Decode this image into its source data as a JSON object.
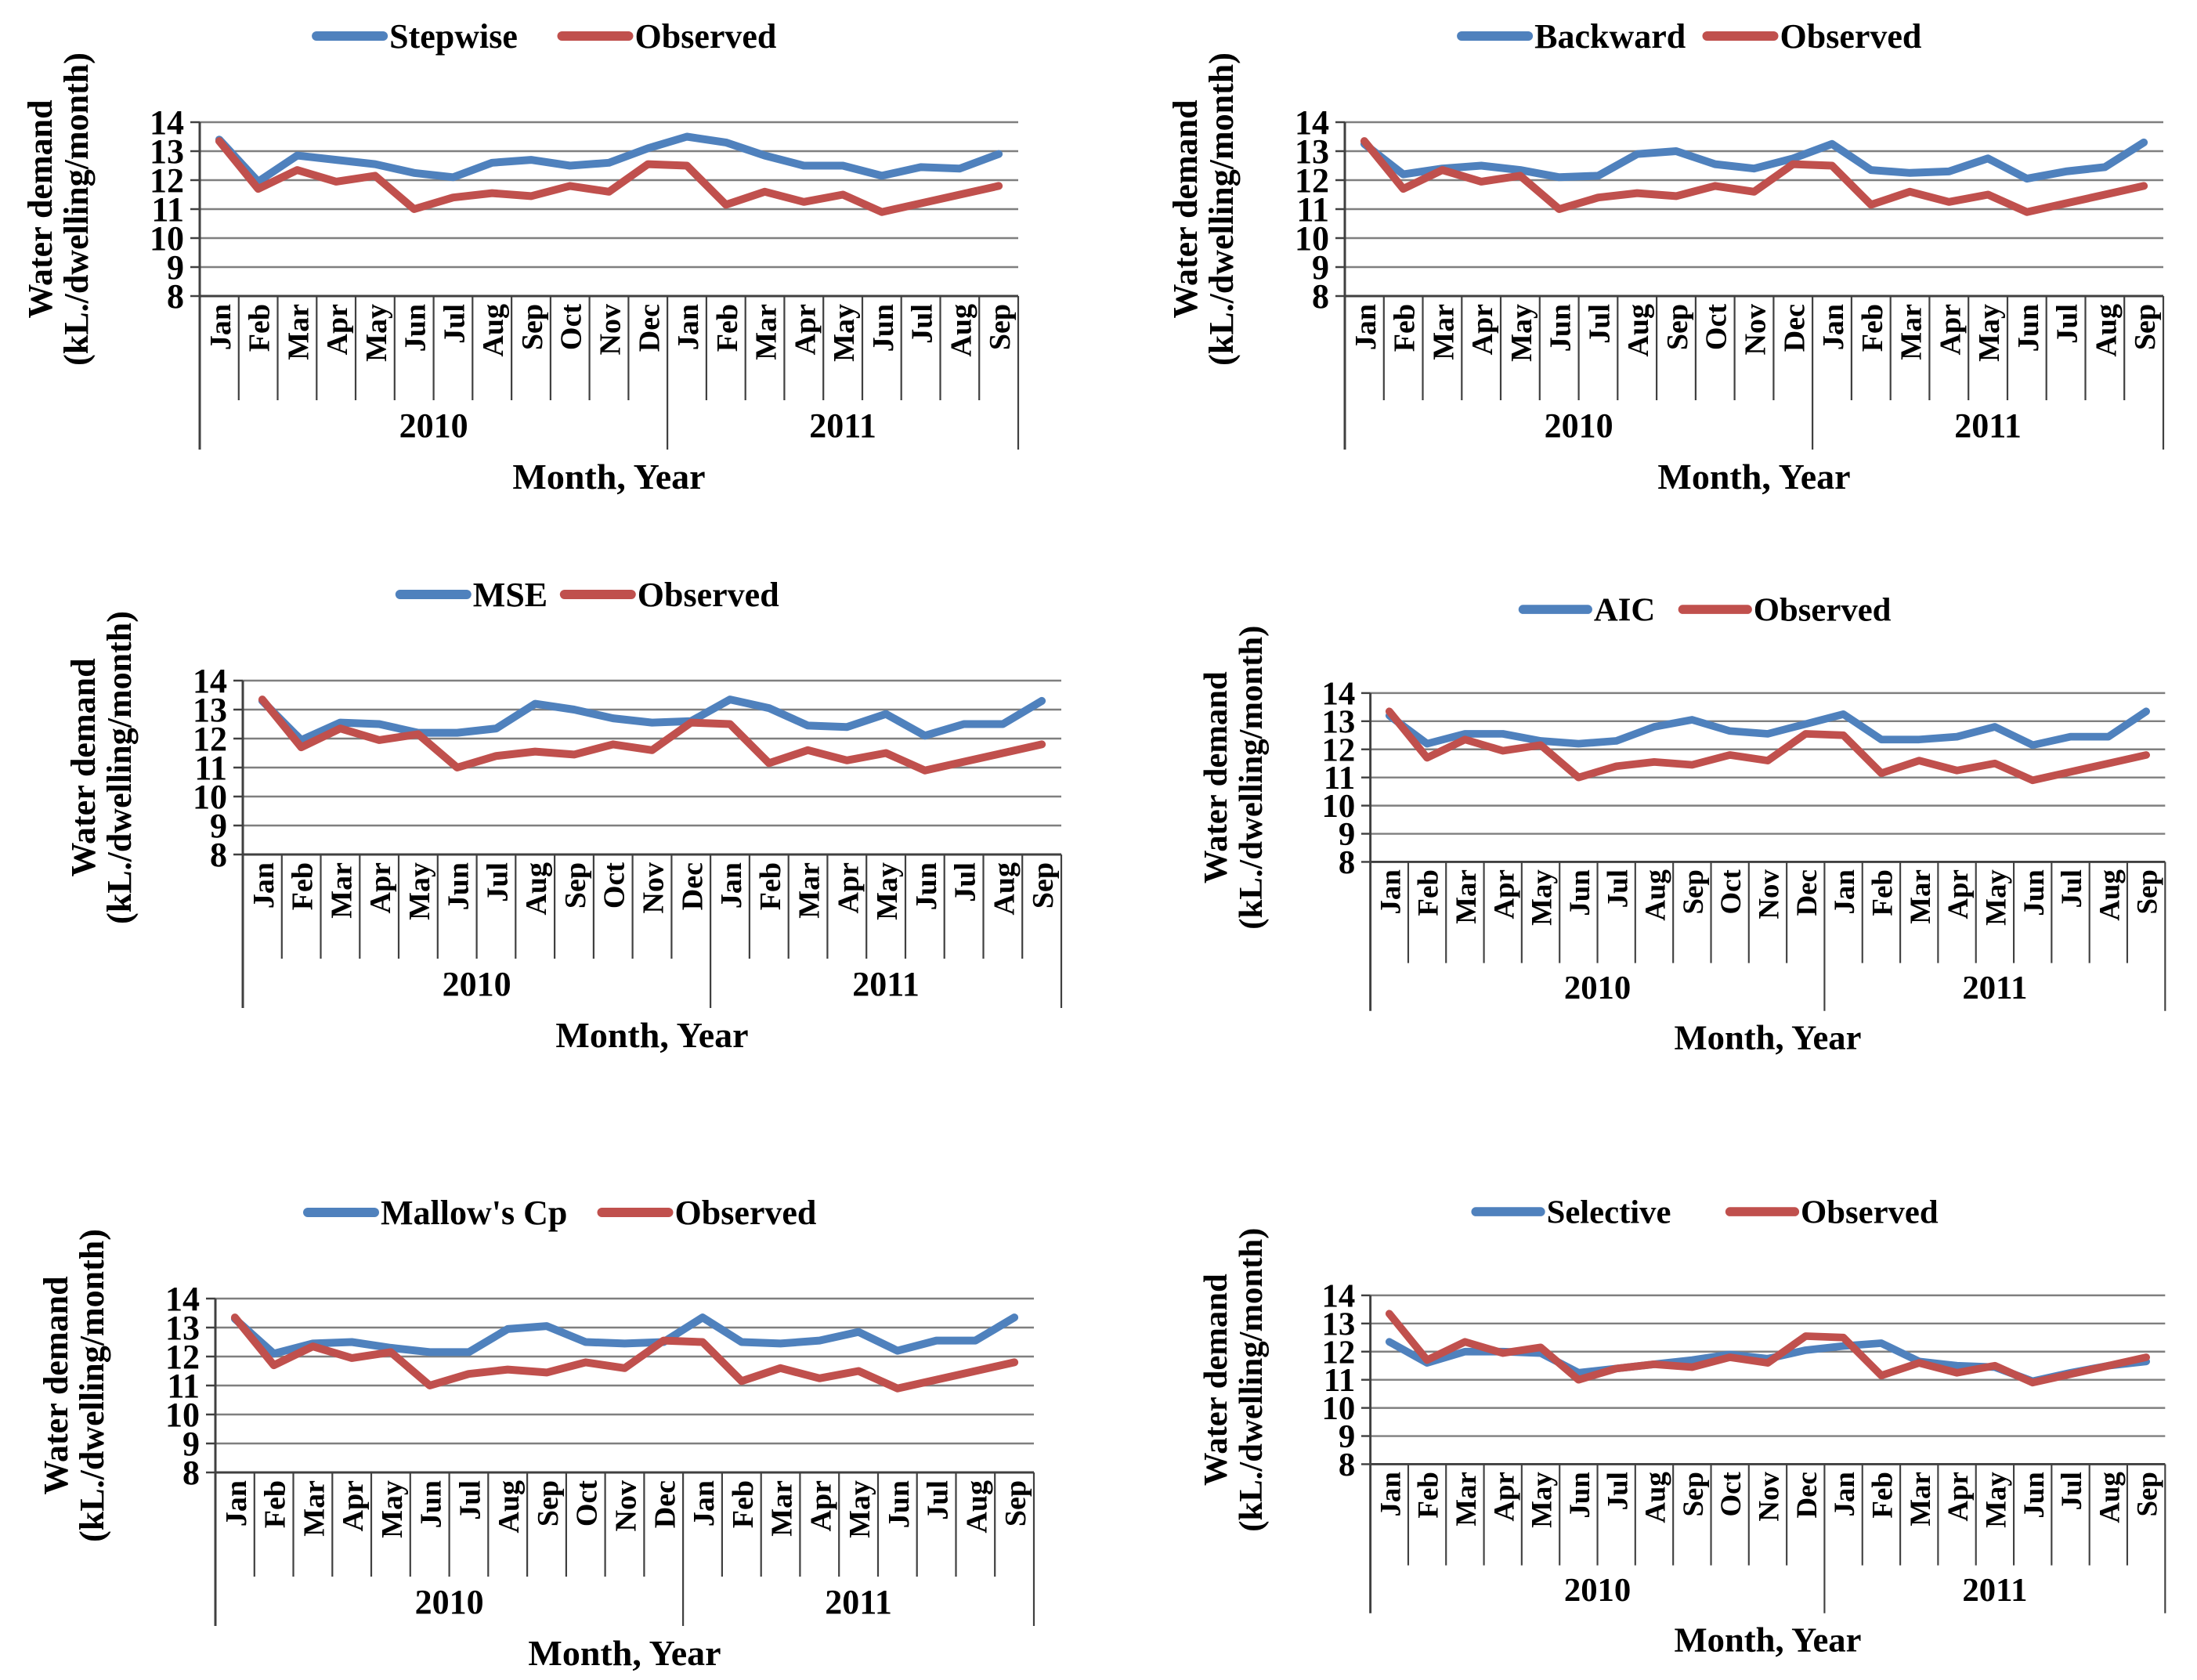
{
  "colors": {
    "model_line": "#4f81bd",
    "observed_line": "#c0504d",
    "gridline": "#7f7f7f",
    "axis": "#404040",
    "text": "#000000",
    "background": "#ffffff"
  },
  "axis_defaults": {
    "ylabel_line1": "Water demand",
    "ylabel_line2": "(kL./dwelling/month)",
    "xlabel": "Month, Year",
    "ymin": 8,
    "ymax": 14,
    "yticks": [
      14,
      13,
      12,
      11,
      10,
      9,
      8
    ],
    "grid": true,
    "legend_position": "top",
    "months": [
      "Jan",
      "Feb",
      "Mar",
      "Apr",
      "May",
      "Jun",
      "Jul",
      "Aug",
      "Sep",
      "Oct",
      "Nov",
      "Dec",
      "Jan",
      "Feb",
      "Mar",
      "Apr",
      "May",
      "Jun",
      "Jul",
      "Aug",
      "Sep"
    ],
    "year_groups": [
      {
        "label": "2010",
        "months": 12
      },
      {
        "label": "2011",
        "months": 9
      }
    ]
  },
  "chart_data": [
    {
      "id": "stepwise",
      "type": "line",
      "position": "row1-col1",
      "xlabel": "Month, Year",
      "ylabel": "Water demand (kL./dwelling/month)",
      "ylim": [
        8,
        14
      ],
      "categories": [
        "Jan 2010",
        "Feb 2010",
        "Mar 2010",
        "Apr 2010",
        "May 2010",
        "Jun 2010",
        "Jul 2010",
        "Aug 2010",
        "Sep 2010",
        "Oct 2010",
        "Nov 2010",
        "Dec 2010",
        "Jan 2011",
        "Feb 2011",
        "Mar 2011",
        "Apr 2011",
        "May 2011",
        "Jun 2011",
        "Jul 2011",
        "Aug 2011",
        "Sep 2011"
      ],
      "series": [
        {
          "name": "Stepwise",
          "color": "#4f81bd",
          "values": [
            13.4,
            11.95,
            12.85,
            12.7,
            12.55,
            12.25,
            12.1,
            12.6,
            12.7,
            12.5,
            12.6,
            13.1,
            13.5,
            13.3,
            12.85,
            12.5,
            12.5,
            12.15,
            12.45,
            12.4,
            12.9
          ]
        },
        {
          "name": "Observed",
          "color": "#c0504d",
          "values": [
            13.35,
            11.7,
            12.35,
            11.95,
            12.15,
            11.0,
            11.4,
            11.55,
            11.45,
            11.8,
            11.6,
            12.55,
            12.5,
            11.15,
            11.6,
            11.25,
            11.5,
            10.9,
            11.2,
            11.5,
            11.8
          ]
        }
      ]
    },
    {
      "id": "backward",
      "type": "line",
      "position": "row1-col2",
      "xlabel": "Month, Year",
      "ylabel": "Water demand (kL./dwelling/month)",
      "ylim": [
        8,
        14
      ],
      "categories": [
        "Jan 2010",
        "Feb 2010",
        "Mar 2010",
        "Apr 2010",
        "May 2010",
        "Jun 2010",
        "Jul 2010",
        "Aug 2010",
        "Sep 2010",
        "Oct 2010",
        "Nov 2010",
        "Dec 2010",
        "Jan 2011",
        "Feb 2011",
        "Mar 2011",
        "Apr 2011",
        "May 2011",
        "Jun 2011",
        "Jul 2011",
        "Aug 2011",
        "Sep 2011"
      ],
      "series": [
        {
          "name": "Backward",
          "color": "#4f81bd",
          "values": [
            13.25,
            12.2,
            12.4,
            12.5,
            12.35,
            12.1,
            12.15,
            12.9,
            13.0,
            12.55,
            12.4,
            12.75,
            13.25,
            12.35,
            12.25,
            12.3,
            12.75,
            12.05,
            12.3,
            12.45,
            13.3
          ]
        },
        {
          "name": "Observed",
          "color": "#c0504d",
          "values": [
            13.35,
            11.7,
            12.35,
            11.95,
            12.15,
            11.0,
            11.4,
            11.55,
            11.45,
            11.8,
            11.6,
            12.55,
            12.5,
            11.15,
            11.6,
            11.25,
            11.5,
            10.9,
            11.2,
            11.5,
            11.8
          ]
        }
      ]
    },
    {
      "id": "mse",
      "type": "line",
      "position": "row2-col1",
      "xlabel": "Month, Year",
      "ylabel": "Water demand (kL./dwelling/month)",
      "ylim": [
        8,
        14
      ],
      "categories": [
        "Jan 2010",
        "Feb 2010",
        "Mar 2010",
        "Apr 2010",
        "May 2010",
        "Jun 2010",
        "Jul 2010",
        "Aug 2010",
        "Sep 2010",
        "Oct 2010",
        "Nov 2010",
        "Dec 2010",
        "Jan 2011",
        "Feb 2011",
        "Mar 2011",
        "Apr 2011",
        "May 2011",
        "Jun 2011",
        "Jul 2011",
        "Aug 2011",
        "Sep 2011"
      ],
      "series": [
        {
          "name": "MSE",
          "color": "#4f81bd",
          "values": [
            13.3,
            11.95,
            12.55,
            12.5,
            12.2,
            12.2,
            12.35,
            13.2,
            13.0,
            12.7,
            12.55,
            12.6,
            13.35,
            13.05,
            12.45,
            12.4,
            12.85,
            12.1,
            12.5,
            12.5,
            13.3
          ]
        },
        {
          "name": "Observed",
          "color": "#c0504d",
          "values": [
            13.35,
            11.7,
            12.35,
            11.95,
            12.15,
            11.0,
            11.4,
            11.55,
            11.45,
            11.8,
            11.6,
            12.55,
            12.5,
            11.15,
            11.6,
            11.25,
            11.5,
            10.9,
            11.2,
            11.5,
            11.8
          ]
        }
      ]
    },
    {
      "id": "aic",
      "type": "line",
      "position": "row2-col2",
      "xlabel": "Month, Year",
      "ylabel": "Water demand (kL./dwelling/month)",
      "ylim": [
        8,
        14
      ],
      "categories": [
        "Jan 2010",
        "Feb 2010",
        "Mar 2010",
        "Apr 2010",
        "May 2010",
        "Jun 2010",
        "Jul 2010",
        "Aug 2010",
        "Sep 2010",
        "Oct 2010",
        "Nov 2010",
        "Dec 2010",
        "Jan 2011",
        "Feb 2011",
        "Mar 2011",
        "Apr 2011",
        "May 2011",
        "Jun 2011",
        "Jul 2011",
        "Aug 2011",
        "Sep 2011"
      ],
      "series": [
        {
          "name": "AIC",
          "color": "#4f81bd",
          "values": [
            13.2,
            12.2,
            12.55,
            12.55,
            12.3,
            12.2,
            12.3,
            12.8,
            13.05,
            12.65,
            12.55,
            12.9,
            13.25,
            12.35,
            12.35,
            12.45,
            12.8,
            12.15,
            12.45,
            12.45,
            13.35
          ]
        },
        {
          "name": "Observed",
          "color": "#c0504d",
          "values": [
            13.35,
            11.7,
            12.35,
            11.95,
            12.15,
            11.0,
            11.4,
            11.55,
            11.45,
            11.8,
            11.6,
            12.55,
            12.5,
            11.15,
            11.6,
            11.25,
            11.5,
            10.9,
            11.2,
            11.5,
            11.8
          ]
        }
      ]
    },
    {
      "id": "mallows-cp",
      "type": "line",
      "position": "row3-col1",
      "xlabel": "Month, Year",
      "ylabel": "Water demand (kL./dwelling/month)",
      "ylim": [
        8,
        14
      ],
      "categories": [
        "Jan 2010",
        "Feb 2010",
        "Mar 2010",
        "Apr 2010",
        "May 2010",
        "Jun 2010",
        "Jul 2010",
        "Aug 2010",
        "Sep 2010",
        "Oct 2010",
        "Nov 2010",
        "Dec 2010",
        "Jan 2011",
        "Feb 2011",
        "Mar 2011",
        "Apr 2011",
        "May 2011",
        "Jun 2011",
        "Jul 2011",
        "Aug 2011",
        "Sep 2011"
      ],
      "series": [
        {
          "name": "Mallow's Cp",
          "color": "#4f81bd",
          "values": [
            13.3,
            12.1,
            12.45,
            12.5,
            12.3,
            12.15,
            12.15,
            12.95,
            13.05,
            12.5,
            12.45,
            12.5,
            13.35,
            12.5,
            12.45,
            12.55,
            12.85,
            12.2,
            12.55,
            12.55,
            13.35
          ]
        },
        {
          "name": "Observed",
          "color": "#c0504d",
          "values": [
            13.35,
            11.7,
            12.35,
            11.95,
            12.15,
            11.0,
            11.4,
            11.55,
            11.45,
            11.8,
            11.6,
            12.55,
            12.5,
            11.15,
            11.6,
            11.25,
            11.5,
            10.9,
            11.2,
            11.5,
            11.8
          ]
        }
      ]
    },
    {
      "id": "selective",
      "type": "line",
      "position": "row3-col2",
      "xlabel": "Month, Year",
      "ylabel": "Water demand (kL./dwelling/month)",
      "ylim": [
        8,
        14
      ],
      "categories": [
        "Jan 2010",
        "Feb 2010",
        "Mar 2010",
        "Apr 2010",
        "May 2010",
        "Jun 2010",
        "Jul 2010",
        "Aug 2010",
        "Sep 2010",
        "Oct 2010",
        "Nov 2010",
        "Dec 2010",
        "Jan 2011",
        "Feb 2011",
        "Mar 2011",
        "Apr 2011",
        "May 2011",
        "Jun 2011",
        "Jul 2011",
        "Aug 2011",
        "Sep 2011"
      ],
      "series": [
        {
          "name": "Selective",
          "color": "#4f81bd",
          "values": [
            12.35,
            11.6,
            12.0,
            12.0,
            11.95,
            11.25,
            11.4,
            11.55,
            11.7,
            11.9,
            11.75,
            12.05,
            12.2,
            12.3,
            11.65,
            11.5,
            11.45,
            10.95,
            11.25,
            11.5,
            11.65
          ]
        },
        {
          "name": "Observed",
          "color": "#c0504d",
          "values": [
            13.35,
            11.7,
            12.35,
            11.95,
            12.15,
            11.0,
            11.4,
            11.55,
            11.45,
            11.8,
            11.6,
            12.55,
            12.5,
            11.15,
            11.6,
            11.25,
            11.5,
            10.9,
            11.2,
            11.5,
            11.8
          ]
        }
      ]
    }
  ]
}
